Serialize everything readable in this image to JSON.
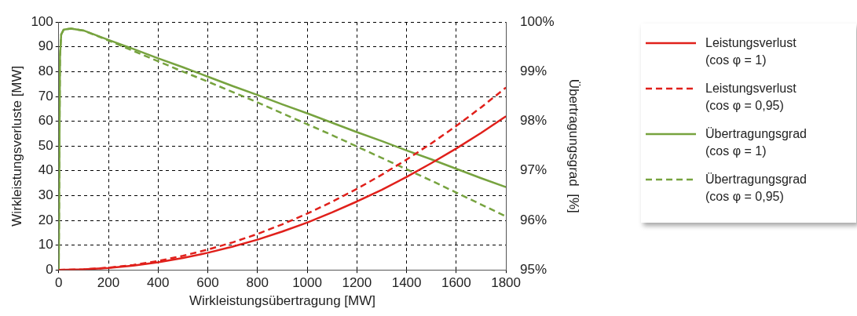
{
  "chart_data": {
    "type": "line",
    "xlabel": "Wirkleistungsübertragung [MW]",
    "ylabel": "Wirkleistungsverluste [MW]",
    "y2label": "Übertragungsgrad  [%]",
    "xlim": [
      0,
      1800
    ],
    "xticks": [
      0,
      200,
      400,
      600,
      800,
      1000,
      1200,
      1400,
      1600,
      1800
    ],
    "ylim": [
      0,
      100
    ],
    "yticks": [
      0,
      10,
      20,
      30,
      40,
      50,
      60,
      70,
      80,
      90,
      100
    ],
    "y2lim": [
      95,
      100
    ],
    "y2ticks": [
      {
        "value": 95,
        "label": "95%"
      },
      {
        "value": 96,
        "label": "96%"
      },
      {
        "value": 97,
        "label": "97%"
      },
      {
        "value": 98,
        "label": "98%"
      },
      {
        "value": 99,
        "label": "99%"
      },
      {
        "value": 100,
        "label": "100%"
      }
    ],
    "grid": true,
    "legend": "right",
    "marker": "none",
    "series": [
      {
        "name": "Leistungsverlust (cos φ = 1)",
        "color": "#e0201b",
        "line_style": "solid",
        "x": [
          0,
          100,
          200,
          300,
          400,
          500,
          600,
          700,
          800,
          900,
          1000,
          1100,
          1200,
          1300,
          1400,
          1500,
          1600,
          1700,
          1800
        ],
        "values": [
          0,
          0.2,
          0.8,
          1.7,
          3.1,
          4.8,
          6.9,
          9.4,
          12.2,
          15.5,
          19.1,
          23.2,
          27.6,
          32.3,
          37.5,
          43.1,
          49,
          55.3,
          62
        ]
      },
      {
        "name": "Leistungsverlust (cos φ = 0,95)",
        "color": "#e0201b",
        "line_style": "dashed",
        "x": [
          0,
          100,
          200,
          300,
          400,
          500,
          600,
          700,
          800,
          900,
          1000,
          1100,
          1200,
          1300,
          1400,
          1500,
          1600,
          1700,
          1800
        ],
        "values": [
          0,
          0.2,
          0.9,
          2,
          3.6,
          5.7,
          8.2,
          11.1,
          14.5,
          18.4,
          22.7,
          27.5,
          32.7,
          38.4,
          44.5,
          51.1,
          58.1,
          65.6,
          73.6
        ]
      },
      {
        "name": "Übertragungsgrad (cos φ = 1)",
        "color": "#77a33f",
        "line_style": "solid",
        "axis": "y2",
        "x": [
          0,
          5,
          10,
          20,
          50,
          100,
          200,
          300,
          400,
          500,
          600,
          700,
          800,
          900,
          1000,
          1100,
          1200,
          1300,
          1400,
          1500,
          1600,
          1700,
          1800
        ],
        "values": [
          95,
          99.3,
          99.75,
          99.85,
          99.87,
          99.83,
          99.64,
          99.46,
          99.27,
          99.09,
          98.9,
          98.71,
          98.53,
          98.34,
          98.16,
          97.97,
          97.78,
          97.6,
          97.41,
          97.23,
          97.04,
          96.85,
          96.67
        ]
      },
      {
        "name": "Übertragungsgrad (cos φ = 0,95)",
        "color": "#77a33f",
        "line_style": "dashed",
        "axis": "y2",
        "x": [
          0,
          5,
          10,
          20,
          50,
          100,
          200,
          300,
          400,
          500,
          600,
          700,
          800,
          900,
          1000,
          1100,
          1200,
          1300,
          1400,
          1500,
          1600,
          1700,
          1800
        ],
        "values": [
          95,
          99.3,
          99.75,
          99.85,
          99.87,
          99.83,
          99.63,
          99.42,
          99.21,
          99,
          98.8,
          98.59,
          98.38,
          98.16,
          97.94,
          97.72,
          97.49,
          97.26,
          97.03,
          96.8,
          96.56,
          96.32,
          96.08
        ]
      }
    ]
  }
}
